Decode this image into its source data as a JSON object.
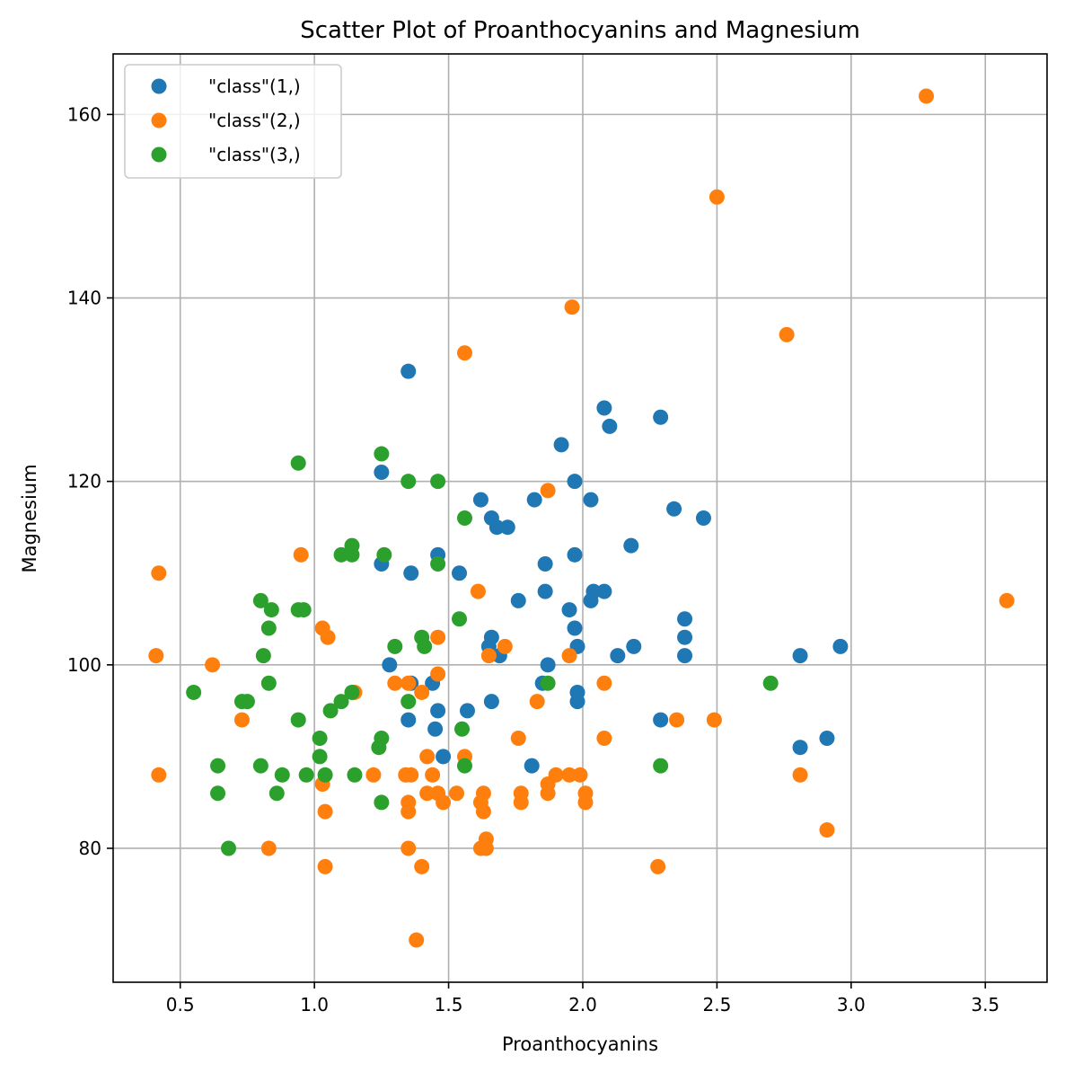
{
  "chart_data": {
    "type": "scatter",
    "title": "Scatter Plot of Proanthocyanins and Magnesium",
    "xlabel": "Proanthocyanins",
    "ylabel": "Magnesium",
    "xlim": [
      0.25,
      3.73
    ],
    "ylim": [
      65.4,
      166.6
    ],
    "xticks": [
      "0.5",
      "1.0",
      "1.5",
      "2.0",
      "2.5",
      "3.0",
      "3.5"
    ],
    "xtick_values": [
      0.5,
      1.0,
      1.5,
      2.0,
      2.5,
      3.0,
      3.5
    ],
    "yticks": [
      "80",
      "100",
      "120",
      "140",
      "160"
    ],
    "ytick_values": [
      80,
      100,
      120,
      140,
      160
    ],
    "grid": true,
    "legend_position": "top-left",
    "series": [
      {
        "name": "\"class\"(1,)",
        "color": "#1f77b4",
        "points": [
          [
            2.29,
            127
          ],
          [
            1.28,
            100
          ],
          [
            2.81,
            101
          ],
          [
            2.18,
            113
          ],
          [
            1.82,
            118
          ],
          [
            1.97,
            112
          ],
          [
            1.98,
            96
          ],
          [
            1.25,
            121
          ],
          [
            1.98,
            97
          ],
          [
            1.85,
            98
          ],
          [
            2.38,
            105
          ],
          [
            1.57,
            95
          ],
          [
            1.81,
            89
          ],
          [
            2.81,
            91
          ],
          [
            2.96,
            102
          ],
          [
            1.46,
            112
          ],
          [
            1.97,
            120
          ],
          [
            1.35,
            132
          ],
          [
            1.54,
            110
          ],
          [
            1.86,
            111
          ],
          [
            1.36,
            98
          ],
          [
            1.44,
            98
          ],
          [
            2.08,
            128
          ],
          [
            2.34,
            117
          ],
          [
            2.08,
            108
          ],
          [
            2.45,
            116
          ],
          [
            1.87,
            100
          ],
          [
            1.69,
            101
          ],
          [
            1.46,
            95
          ],
          [
            1.66,
            96
          ],
          [
            1.35,
            94
          ],
          [
            1.45,
            93
          ],
          [
            2.13,
            101
          ],
          [
            1.66,
            103
          ],
          [
            1.65,
            102
          ],
          [
            1.76,
            107
          ],
          [
            1.98,
            102
          ],
          [
            2.38,
            103
          ],
          [
            1.95,
            106
          ],
          [
            1.25,
            111
          ],
          [
            2.1,
            126
          ],
          [
            2.91,
            92
          ],
          [
            2.04,
            108
          ],
          [
            2.03,
            107
          ],
          [
            2.19,
            102
          ],
          [
            1.92,
            124
          ],
          [
            2.29,
            94
          ],
          [
            1.68,
            115
          ],
          [
            1.72,
            115
          ],
          [
            1.62,
            118
          ],
          [
            1.97,
            104
          ],
          [
            2.38,
            101
          ],
          [
            1.48,
            90
          ],
          [
            1.36,
            110
          ],
          [
            2.03,
            118
          ],
          [
            1.66,
            116
          ],
          [
            1.86,
            108
          ]
        ]
      },
      {
        "name": "\"class\"(2,)",
        "color": "#ff7f0e",
        "points": [
          [
            3.28,
            162
          ],
          [
            2.5,
            151
          ],
          [
            1.96,
            139
          ],
          [
            2.76,
            136
          ],
          [
            1.56,
            134
          ],
          [
            1.87,
            119
          ],
          [
            0.95,
            112
          ],
          [
            0.42,
            110
          ],
          [
            3.58,
            107
          ],
          [
            1.61,
            108
          ],
          [
            1.03,
            104
          ],
          [
            1.05,
            103
          ],
          [
            1.46,
            103
          ],
          [
            1.71,
            102
          ],
          [
            1.65,
            101
          ],
          [
            1.95,
            101
          ],
          [
            0.41,
            101
          ],
          [
            0.62,
            100
          ],
          [
            1.46,
            99
          ],
          [
            1.3,
            98
          ],
          [
            1.35,
            98
          ],
          [
            2.08,
            98
          ],
          [
            1.15,
            97
          ],
          [
            1.4,
            97
          ],
          [
            1.83,
            96
          ],
          [
            0.73,
            94
          ],
          [
            2.35,
            94
          ],
          [
            2.49,
            94
          ],
          [
            1.76,
            92
          ],
          [
            2.08,
            92
          ],
          [
            1.56,
            90
          ],
          [
            1.42,
            90
          ],
          [
            0.42,
            88
          ],
          [
            1.22,
            88
          ],
          [
            1.34,
            88
          ],
          [
            1.36,
            88
          ],
          [
            1.44,
            88
          ],
          [
            1.9,
            88
          ],
          [
            1.95,
            88
          ],
          [
            1.99,
            88
          ],
          [
            2.81,
            88
          ],
          [
            1.03,
            87
          ],
          [
            1.87,
            87
          ],
          [
            1.42,
            86
          ],
          [
            1.46,
            86
          ],
          [
            1.53,
            86
          ],
          [
            1.63,
            86
          ],
          [
            1.77,
            86
          ],
          [
            1.87,
            86
          ],
          [
            2.01,
            86
          ],
          [
            1.35,
            85
          ],
          [
            1.48,
            85
          ],
          [
            1.62,
            85
          ],
          [
            1.77,
            85
          ],
          [
            2.01,
            85
          ],
          [
            1.04,
            84
          ],
          [
            1.35,
            84
          ],
          [
            1.63,
            84
          ],
          [
            2.91,
            82
          ],
          [
            1.64,
            81
          ],
          [
            0.83,
            80
          ],
          [
            1.35,
            80
          ],
          [
            1.62,
            80
          ],
          [
            1.64,
            80
          ],
          [
            1.04,
            78
          ],
          [
            1.4,
            78
          ],
          [
            2.28,
            78
          ],
          [
            1.38,
            70
          ]
        ]
      },
      {
        "name": "\"class\"(3,)",
        "color": "#2ca02c",
        "points": [
          [
            1.25,
            123
          ],
          [
            0.94,
            122
          ],
          [
            1.35,
            120
          ],
          [
            1.46,
            120
          ],
          [
            1.56,
            116
          ],
          [
            1.14,
            113
          ],
          [
            1.1,
            112
          ],
          [
            1.14,
            112
          ],
          [
            1.26,
            112
          ],
          [
            1.46,
            111
          ],
          [
            0.8,
            107
          ],
          [
            0.84,
            106
          ],
          [
            0.94,
            106
          ],
          [
            0.96,
            106
          ],
          [
            1.54,
            105
          ],
          [
            0.83,
            104
          ],
          [
            1.4,
            103
          ],
          [
            1.3,
            102
          ],
          [
            1.41,
            102
          ],
          [
            0.81,
            101
          ],
          [
            0.83,
            98
          ],
          [
            1.87,
            98
          ],
          [
            2.7,
            98
          ],
          [
            0.55,
            97
          ],
          [
            1.14,
            97
          ],
          [
            0.73,
            96
          ],
          [
            0.75,
            96
          ],
          [
            1.1,
            96
          ],
          [
            1.35,
            96
          ],
          [
            1.06,
            95
          ],
          [
            0.94,
            94
          ],
          [
            1.55,
            93
          ],
          [
            1.02,
            92
          ],
          [
            1.25,
            92
          ],
          [
            1.24,
            91
          ],
          [
            1.02,
            90
          ],
          [
            0.64,
            89
          ],
          [
            0.8,
            89
          ],
          [
            1.56,
            89
          ],
          [
            2.29,
            89
          ],
          [
            0.88,
            88
          ],
          [
            0.97,
            88
          ],
          [
            1.04,
            88
          ],
          [
            1.15,
            88
          ],
          [
            0.64,
            86
          ],
          [
            0.86,
            86
          ],
          [
            1.25,
            85
          ],
          [
            0.68,
            80
          ]
        ]
      }
    ]
  }
}
